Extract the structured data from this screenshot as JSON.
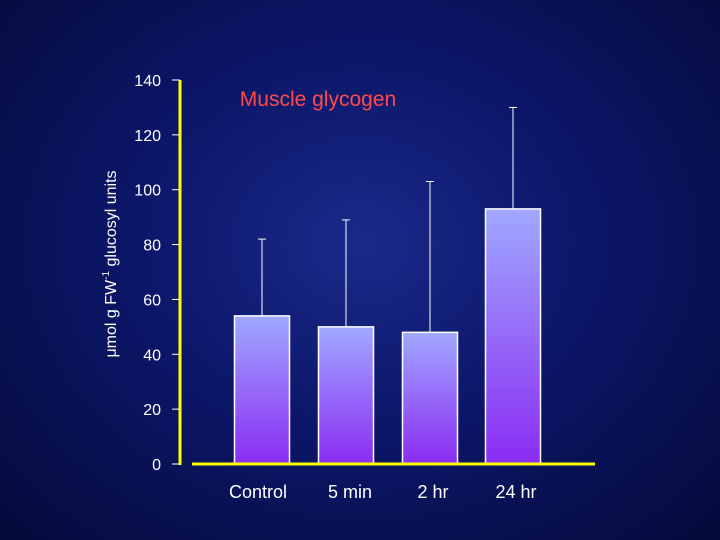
{
  "colors": {
    "title": "#ff4a4a",
    "axis": "#ffff00",
    "tick": "#ffffff",
    "bar_top": "#a0a8ff",
    "bar_bottom": "#8a2cf2",
    "error_bar": "#ffffff"
  },
  "chart_data": {
    "type": "bar",
    "title": "Muscle glycogen",
    "ylabel": {
      "base": "μmol g FW",
      "superscript": "-1",
      "suffix": " glucosyl units"
    },
    "xlabel": "",
    "categories": [
      "Control",
      "5 min",
      "2 hr",
      "24 hr"
    ],
    "values": [
      54,
      50,
      48,
      93
    ],
    "error_upper": [
      82,
      89,
      103,
      130
    ],
    "ylim": [
      0,
      140
    ],
    "yticks": [
      0,
      20,
      40,
      60,
      80,
      100,
      120,
      140
    ],
    "grid": false,
    "legend": "none"
  }
}
